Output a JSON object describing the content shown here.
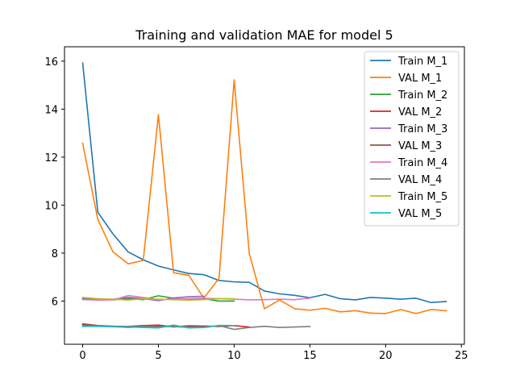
{
  "chart_data": {
    "type": "line",
    "title": "Training and validation MAE for model 5",
    "xlabel": "",
    "ylabel": "",
    "xlim": [
      -1.2,
      25.2
    ],
    "ylim": [
      4.2,
      16.6
    ],
    "xticks": [
      0,
      5,
      10,
      15,
      20,
      25
    ],
    "yticks": [
      6,
      8,
      10,
      12,
      14,
      16
    ],
    "grid": false,
    "legend_position": "top-right",
    "series": [
      {
        "name": "Train M_1",
        "color": "#1f77b4",
        "x": [
          0,
          1,
          2,
          3,
          4,
          5,
          6,
          7,
          8,
          9,
          10,
          11,
          12,
          13,
          14,
          15,
          16,
          17,
          18,
          19,
          20,
          21,
          22,
          23,
          24
        ],
        "y": [
          15.92,
          9.7,
          8.8,
          8.05,
          7.72,
          7.46,
          7.3,
          7.15,
          7.1,
          6.86,
          6.8,
          6.78,
          6.42,
          6.3,
          6.24,
          6.14,
          6.28,
          6.1,
          6.05,
          6.15,
          6.12,
          6.08,
          6.12,
          5.94,
          5.98
        ]
      },
      {
        "name": "VAL M_1",
        "color": "#ff7f0e",
        "x": [
          0,
          1,
          2,
          3,
          4,
          5,
          6,
          7,
          8,
          9,
          10,
          11,
          12,
          13,
          14,
          15,
          16,
          17,
          18,
          19,
          20,
          21,
          22,
          23,
          24
        ],
        "y": [
          12.58,
          9.4,
          8.05,
          7.55,
          7.7,
          13.77,
          7.18,
          7.08,
          6.12,
          6.95,
          15.22,
          7.98,
          5.68,
          6.05,
          5.68,
          5.62,
          5.7,
          5.55,
          5.6,
          5.5,
          5.48,
          5.65,
          5.48,
          5.65,
          5.6
        ]
      },
      {
        "name": "Train M_2",
        "color": "#2ca02c",
        "x": [
          0,
          1,
          2,
          3,
          4,
          5,
          6,
          7,
          8,
          9,
          10
        ],
        "y": [
          6.12,
          6.08,
          6.05,
          6.1,
          6.06,
          6.22,
          6.12,
          6.05,
          6.1,
          6.0,
          6.0
        ]
      },
      {
        "name": "VAL M_2",
        "color": "#d62728",
        "x": [
          0,
          1,
          2,
          3,
          4,
          5,
          6,
          7,
          8,
          9,
          10,
          11
        ],
        "y": [
          5.05,
          4.98,
          4.95,
          4.93,
          4.98,
          5.0,
          4.92,
          4.97,
          4.96,
          4.94,
          4.98,
          4.92
        ]
      },
      {
        "name": "Train M_3",
        "color": "#9467bd",
        "x": [
          0,
          1,
          2,
          3,
          4,
          5,
          6,
          7,
          8
        ],
        "y": [
          6.08,
          6.06,
          6.08,
          6.15,
          6.1,
          6.02,
          6.13,
          6.18,
          6.2
        ]
      },
      {
        "name": "VAL M_3",
        "color": "#8c564b",
        "x": [
          0,
          1,
          2,
          3,
          4,
          5,
          6,
          7,
          8
        ],
        "y": [
          5.02,
          4.96,
          4.95,
          4.94,
          4.98,
          4.96,
          4.95,
          4.94,
          4.95
        ]
      },
      {
        "name": "Train M_4",
        "color": "#e377c2",
        "x": [
          0,
          1,
          2,
          3,
          4,
          5,
          6,
          7,
          8,
          9,
          10,
          11,
          12,
          13,
          14,
          15
        ],
        "y": [
          6.06,
          6.04,
          6.05,
          6.23,
          6.15,
          6.06,
          6.08,
          6.1,
          6.12,
          6.1,
          6.08,
          6.05,
          6.06,
          6.08,
          6.06,
          6.12
        ]
      },
      {
        "name": "VAL M_4",
        "color": "#7f7f7f",
        "x": [
          0,
          1,
          2,
          3,
          4,
          5,
          6,
          7,
          8,
          9,
          10,
          11,
          12,
          13,
          14,
          15
        ],
        "y": [
          4.97,
          4.95,
          4.94,
          4.9,
          4.94,
          4.92,
          4.94,
          4.9,
          4.9,
          4.98,
          4.82,
          4.9,
          4.95,
          4.9,
          4.92,
          4.94
        ]
      },
      {
        "name": "Train M_5",
        "color": "#bcbd22",
        "x": [
          0,
          1,
          2,
          3,
          4,
          5,
          6,
          7,
          8,
          9,
          10
        ],
        "y": [
          6.15,
          6.1,
          6.08,
          6.04,
          6.1,
          6.08,
          6.06,
          6.04,
          6.06,
          6.1,
          6.1
        ]
      },
      {
        "name": "VAL M_5",
        "color": "#17becf",
        "x": [
          0,
          1,
          2,
          3,
          4,
          5,
          6,
          7,
          8,
          9,
          10
        ],
        "y": [
          4.94,
          4.95,
          4.93,
          4.92,
          4.9,
          4.88,
          5.0,
          4.88,
          4.9,
          4.99,
          4.98
        ]
      }
    ]
  }
}
